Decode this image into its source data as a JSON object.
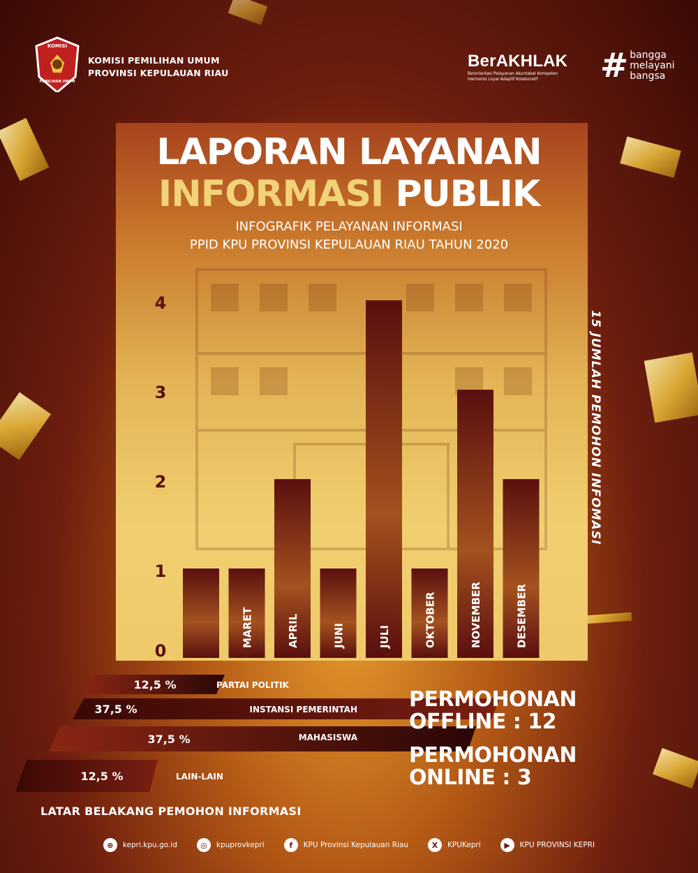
{
  "header": {
    "logo_text_top": "KOMISI",
    "logo_text_bottom": "PEMILIHAN UMUM",
    "org_line1": "KOMISI PEMILIHAN UMUM",
    "org_line2": "PROVINSI KEPULAUAN RIAU",
    "brand": "BerAKHLAK",
    "brand_tagline1": "Berorientasi Pelayanan Akuntabel Kompeten",
    "brand_tagline2": "Harmonis Loyal Adaptif Kolaboratif",
    "hashtag_symbol": "#",
    "hashtag_lines": [
      "bangga",
      "melayani",
      "bangsa"
    ]
  },
  "title": {
    "line1": "LAPORAN LAYANAN",
    "line2_gold": "INFORMASI",
    "line2_white": "PUBLIK",
    "subtitle1": "INFOGRAFIK PELAYANAN INFORMASI",
    "subtitle2": "PPID KPU PROVINSI KEPULAUAN RIAU TAHUN 2020"
  },
  "chart_data": [
    {
      "type": "bar",
      "categories": [
        "",
        "MARET",
        "APRIL",
        "JUNI",
        "JULI",
        "OKTOBER",
        "NOVEMBER",
        "DESEMBER"
      ],
      "values": [
        1,
        1,
        2,
        1,
        4,
        1,
        3,
        2
      ],
      "yticks": [
        "0",
        "1",
        "2",
        "3",
        "4"
      ],
      "ylim": [
        0,
        4
      ],
      "side_label": "15 JUMLAH PEMOHON INFOMASI"
    },
    {
      "type": "bar",
      "title": "LATAR BELAKANG PEMOHON INFORMASI",
      "categories": [
        "PARTAI POLITIK",
        "INSTANSI PEMERINTAH",
        "MAHASISWA",
        "LAIN-LAIN"
      ],
      "values": [
        12.5,
        37.5,
        37.5,
        12.5
      ],
      "value_labels": [
        "12,5 %",
        "37,5 %",
        "37,5 %",
        "12,5 %"
      ]
    }
  ],
  "stats": {
    "offline_label": "PERMOHONAN",
    "offline_value": "OFFLINE : 12",
    "online_label": "PERMOHONAN",
    "online_value": "ONLINE : 3"
  },
  "socials": [
    {
      "icon": "globe-icon",
      "glyph": "⊕",
      "label": "kepri.kpu.go.id"
    },
    {
      "icon": "instagram-icon",
      "glyph": "◎",
      "label": "kpuprovkepri"
    },
    {
      "icon": "facebook-icon",
      "glyph": "f",
      "label": "KPU Provinsi Kepulauan Riau"
    },
    {
      "icon": "x-icon",
      "glyph": "X",
      "label": "KPUKepri"
    },
    {
      "icon": "youtube-icon",
      "glyph": "▶",
      "label": "KPU PROVINSI KEPRI"
    }
  ],
  "colors": {
    "bar_dark": "#5a0f0e",
    "bar_light": "#c98a3a",
    "gold": "#f3d37a"
  }
}
